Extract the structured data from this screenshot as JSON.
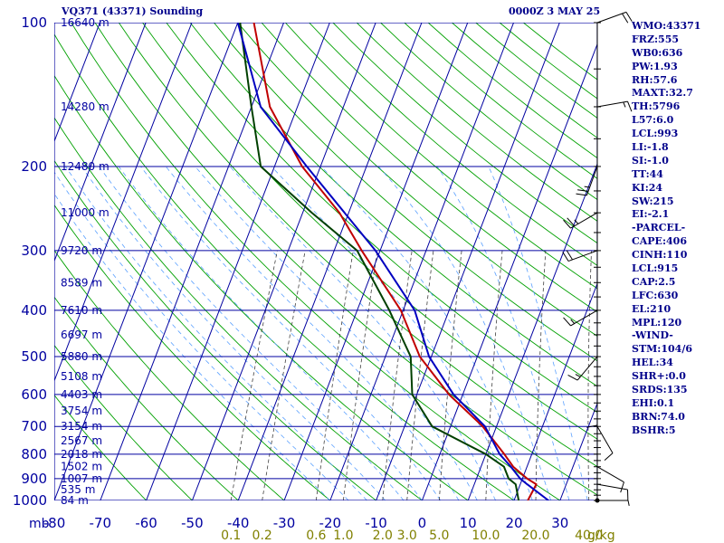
{
  "header": {
    "title": "VQ371 (43371) Sounding",
    "time": "0000Z  3 MAY 25"
  },
  "colors": {
    "axes": "#0000a0",
    "isotherm": "#0000a0",
    "dry_adiabat": "#00a000",
    "moist_adiabat": "#5aa0ff",
    "mixing_ratio": "#404040",
    "temperature": "#c00000",
    "dewpoint": "#004000",
    "parcel": "#0000c0",
    "text": "#00008b",
    "mixing_label": "#808000"
  },
  "indices": [
    "WMO:43371",
    "FRZ:555",
    "WB0:636",
    "PW:1.93",
    "RH:57.6",
    "MAXT:32.7",
    "TH:5796",
    "L57:6.0",
    "LCL:993",
    "LI:-1.8",
    "SI:-1.0",
    "TT:44",
    "KI:24",
    "SW:215",
    "EI:-2.1",
    "-PARCEL-",
    "CAPE:406",
    "CINH:110",
    "LCL:915",
    "CAP:2.5",
    "LFC:630",
    "EL:210",
    "MPL:120",
    "-WIND-",
    "STM:104/6",
    "HEL:34",
    "SHR+:0.0",
    "SRDS:135",
    "EHI:0.1",
    "BRN:74.0",
    "BSHR:5"
  ],
  "chart_data": {
    "type": "line",
    "title": "VQ371 (43371) Sounding",
    "valid_time": "0000Z  3 MAY 25",
    "xlabel": "",
    "ylabel": "mb",
    "x_axis_unit": "°C",
    "y_axis_unit": "mb",
    "xlim": [
      -80,
      0
    ],
    "ylim": [
      1000,
      100
    ],
    "y_scale": "log",
    "grid": true,
    "x_ticks": [
      -80,
      -70,
      -60,
      -50,
      -40,
      -30,
      -20,
      -10,
      0,
      10,
      20,
      30,
      40
    ],
    "x_tick_labels": [
      "-80",
      "-70",
      "-60",
      "-50",
      "-40",
      "-30",
      "-20",
      "-10",
      "0",
      "10",
      "20",
      "30",
      "40"
    ],
    "y_ticks": [
      100,
      200,
      300,
      400,
      500,
      600,
      700,
      800,
      900,
      1000
    ],
    "y_tick_labels": [
      "100",
      "200",
      "300",
      "400",
      "500",
      "600",
      "700",
      "800",
      "900",
      "1000"
    ],
    "height_labels": [
      {
        "p": 100,
        "label": "16640 m"
      },
      {
        "p": 150,
        "label": "14280 m"
      },
      {
        "p": 200,
        "label": "12480 m"
      },
      {
        "p": 250,
        "label": "11000 m"
      },
      {
        "p": 300,
        "label": "9720 m"
      },
      {
        "p": 350,
        "label": "8589 m"
      },
      {
        "p": 400,
        "label": "7610 m"
      },
      {
        "p": 450,
        "label": "6697 m"
      },
      {
        "p": 500,
        "label": "5880 m"
      },
      {
        "p": 550,
        "label": "5108 m"
      },
      {
        "p": 600,
        "label": "4403 m"
      },
      {
        "p": 650,
        "label": "3754 m"
      },
      {
        "p": 700,
        "label": "3154 m"
      },
      {
        "p": 750,
        "label": "2567 m"
      },
      {
        "p": 800,
        "label": "2018 m"
      },
      {
        "p": 850,
        "label": "1502 m"
      },
      {
        "p": 900,
        "label": "1007 m"
      },
      {
        "p": 950,
        "label": "535 m"
      },
      {
        "p": 1000,
        "label": "84 m"
      }
    ],
    "mixing_ratio_labels": [
      "0.1",
      "0.2",
      "0.6",
      "1.0",
      "2.0",
      "3.0",
      "5.0",
      "10.0",
      "20.0",
      "40.0",
      "g/kg"
    ],
    "series": [
      {
        "id": "temperature",
        "pressure": [
          1000,
          925,
          900,
          850,
          800,
          700,
          600,
          500,
          400,
          300,
          250,
          200,
          150,
          100
        ],
        "values": [
          23,
          23.5,
          21,
          17,
          14,
          7,
          -3,
          -12.5,
          -20.5,
          -34,
          -42,
          -54,
          -66,
          -76.5
        ]
      },
      {
        "id": "dewpoint",
        "pressure": [
          1000,
          925,
          900,
          850,
          800,
          700,
          600,
          500,
          400,
          300,
          250,
          200,
          150,
          100
        ],
        "values": [
          21,
          19,
          17,
          15,
          10,
          -4,
          -11,
          -14.5,
          -23,
          -35,
          -48,
          -63,
          -70,
          -79.5
        ]
      },
      {
        "id": "parcel",
        "pressure": [
          1000,
          925,
          900,
          850,
          800,
          700,
          600,
          500,
          400,
          300,
          200,
          150,
          100
        ],
        "values": [
          27.5,
          21.5,
          19.5,
          16.5,
          13,
          7.5,
          -2,
          -10.5,
          -17.5,
          -31,
          -53,
          -68,
          -80
        ]
      }
    ],
    "wind_barbs": [
      {
        "p": 1000,
        "dir": 90,
        "speed": 5
      },
      {
        "p": 925,
        "dir": 100,
        "speed": 10
      },
      {
        "p": 850,
        "dir": 120,
        "speed": 10
      },
      {
        "p": 700,
        "dir": 150,
        "speed": 10
      },
      {
        "p": 600,
        "dir": 180,
        "speed": 10
      },
      {
        "p": 500,
        "dir": 220,
        "speed": 15
      },
      {
        "p": 400,
        "dir": 240,
        "speed": 15
      },
      {
        "p": 300,
        "dir": 250,
        "speed": 20
      },
      {
        "p": 250,
        "dir": 240,
        "speed": 25
      },
      {
        "p": 200,
        "dir": 200,
        "speed": 25
      },
      {
        "p": 150,
        "dir": 80,
        "speed": 15
      },
      {
        "p": 100,
        "dir": 70,
        "speed": 20
      }
    ]
  }
}
